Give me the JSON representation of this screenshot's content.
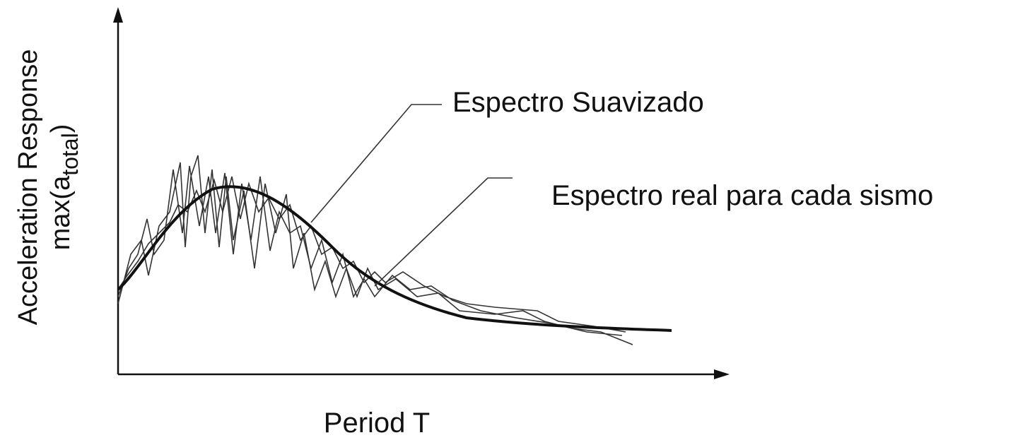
{
  "y_axis": {
    "label_line1": "Acceleration Response",
    "label_line2": {
      "prefix": "max(a",
      "subscript": "total",
      "suffix": ")"
    }
  },
  "x_axis": {
    "label": "Period  T"
  },
  "annotations": [
    "Espectro Suavizado",
    "Espectro real para cada sismo"
  ]
}
